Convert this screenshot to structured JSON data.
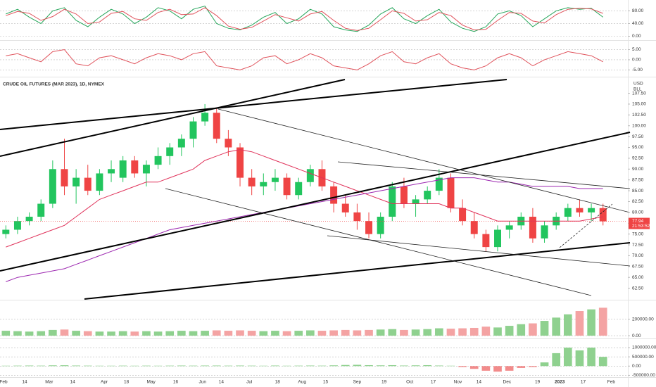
{
  "chart_data": [
    {
      "type": "line",
      "ylim": [
        -10,
        112
      ],
      "grid": true,
      "yticks": [
        {
          "value": 80,
          "label": "80.00"
        },
        {
          "value": 40,
          "label": "40.00"
        },
        {
          "value": 0,
          "label": "0.00"
        }
      ],
      "series": [
        {
          "color": "#26a65b",
          "values": [
            70,
            85,
            60,
            40,
            80,
            90,
            50,
            30,
            60,
            85,
            70,
            40,
            60,
            90,
            80,
            55,
            85,
            95,
            40,
            25,
            20,
            35,
            60,
            75,
            40,
            55,
            85,
            70,
            30,
            20,
            15,
            35,
            70,
            90,
            55,
            40,
            65,
            85,
            45,
            25,
            15,
            30,
            70,
            80,
            65,
            30,
            55,
            80,
            90,
            85,
            88,
            60
          ]
        },
        {
          "color": "#e0525b",
          "values": [
            65,
            78,
            72,
            50,
            62,
            85,
            70,
            40,
            45,
            72,
            78,
            55,
            50,
            75,
            85,
            68,
            70,
            90,
            65,
            32,
            22,
            28,
            48,
            68,
            58,
            48,
            70,
            78,
            50,
            25,
            18,
            25,
            52,
            80,
            72,
            48,
            52,
            75,
            65,
            35,
            20,
            22,
            50,
            75,
            72,
            48,
            42,
            68,
            85,
            88,
            86,
            72
          ]
        }
      ]
    },
    {
      "type": "line",
      "ylim": [
        -8,
        9
      ],
      "grid": true,
      "yticks": [
        {
          "value": 5,
          "label": "5.00"
        },
        {
          "value": 0,
          "label": "0.00"
        },
        {
          "value": -5,
          "label": "-5.00"
        }
      ],
      "series": [
        {
          "color": "#e0525b",
          "values": [
            2,
            3,
            1,
            -1,
            4,
            5,
            -2,
            -3,
            1,
            2,
            0,
            -2,
            1,
            3,
            2,
            0,
            3,
            4,
            -3,
            -4,
            -5,
            -3,
            1,
            2,
            -2,
            0,
            3,
            1,
            -3,
            -4,
            -5,
            -2,
            2,
            4,
            -1,
            -2,
            1,
            3,
            -2,
            -4,
            -5,
            -3,
            1,
            3,
            1,
            -3,
            0,
            2,
            4,
            3,
            2,
            -1
          ]
        }
      ]
    },
    {
      "type": "candlestick",
      "title": "CRUDE OIL FUTURES (MAR 2023), 1D, NYMEX",
      "currency": "USD",
      "unit": "BLL",
      "up_color": "#22c55e",
      "down_color": "#ef4444",
      "grid": false,
      "xlim": [
        -0.5,
        53
      ],
      "xticks": [
        {
          "value": -0.2,
          "label": "Feb"
        },
        {
          "value": 1.6,
          "label": "14"
        },
        {
          "value": 3.7,
          "label": "Mar"
        },
        {
          "value": 5.7,
          "label": "14"
        },
        {
          "value": 8.4,
          "label": "Apr"
        },
        {
          "value": 10.3,
          "label": "18"
        },
        {
          "value": 12.4,
          "label": "May"
        },
        {
          "value": 14.5,
          "label": "16"
        },
        {
          "value": 16.8,
          "label": "Jun"
        },
        {
          "value": 18.4,
          "label": "14"
        },
        {
          "value": 20.8,
          "label": "Jul"
        },
        {
          "value": 23.2,
          "label": "18"
        },
        {
          "value": 25.3,
          "label": "Aug"
        },
        {
          "value": 27.3,
          "label": "15"
        },
        {
          "value": 30.0,
          "label": "Sep"
        },
        {
          "value": 32.3,
          "label": "19"
        },
        {
          "value": 34.5,
          "label": "Oct"
        },
        {
          "value": 36.5,
          "label": "17"
        },
        {
          "value": 38.6,
          "label": "Nov"
        },
        {
          "value": 40.4,
          "label": "14"
        },
        {
          "value": 42.8,
          "label": "Dec"
        },
        {
          "value": 45.4,
          "label": "19"
        },
        {
          "value": 47.3,
          "label": "2023"
        },
        {
          "value": 49.3,
          "label": "17"
        },
        {
          "value": 51.7,
          "label": "Feb"
        }
      ],
      "ylim": [
        60,
        111
      ],
      "yticks": [
        {
          "value": 62.5,
          "label": "62.50"
        },
        {
          "value": 65,
          "label": "65.00"
        },
        {
          "value": 67.5,
          "label": "67.50"
        },
        {
          "value": 70,
          "label": "70.00"
        },
        {
          "value": 72.5,
          "label": "72.50"
        },
        {
          "value": 75,
          "label": "75.00"
        },
        {
          "value": 77.5,
          "label": "77.50"
        },
        {
          "value": 80,
          "label": "80.00"
        },
        {
          "value": 82.5,
          "label": "82.50"
        },
        {
          "value": 85,
          "label": "85.00"
        },
        {
          "value": 87.5,
          "label": "87.50"
        },
        {
          "value": 90,
          "label": "90.00"
        },
        {
          "value": 92.5,
          "label": "92.50"
        },
        {
          "value": 95,
          "label": "95.00"
        },
        {
          "value": 97.5,
          "label": "97.50"
        },
        {
          "value": 100,
          "label": "100.00"
        },
        {
          "value": 102.5,
          "label": "102.50"
        },
        {
          "value": 105,
          "label": "105.00"
        },
        {
          "value": 107.5,
          "label": "107.50"
        }
      ],
      "open": [
        75,
        76,
        78,
        79,
        82,
        90,
        86,
        88,
        85,
        89,
        88,
        92,
        89,
        91,
        93,
        95,
        97,
        101,
        103,
        97,
        95,
        88,
        86,
        87,
        88,
        84,
        87,
        90,
        86,
        82,
        80,
        78,
        75,
        79,
        86,
        82,
        83,
        85,
        88,
        81,
        78,
        75,
        72,
        76,
        77,
        79,
        74,
        77,
        79,
        81,
        80,
        81
      ],
      "high": [
        77,
        79,
        80,
        83,
        92,
        97,
        90,
        91,
        90,
        92,
        93,
        93,
        92,
        95,
        96,
        98,
        102,
        105,
        104,
        99,
        96,
        90,
        89,
        90,
        89,
        88,
        91,
        92,
        87,
        84,
        82,
        80,
        80,
        87,
        88,
        84,
        86,
        90,
        89,
        83,
        80,
        76,
        77,
        78,
        80,
        81,
        78,
        80,
        82,
        83,
        82,
        82
      ],
      "low": [
        74,
        75,
        77,
        78,
        81,
        84,
        82,
        84,
        84,
        87,
        87,
        88,
        86,
        90,
        91,
        93,
        95,
        100,
        96,
        93,
        86,
        84,
        84,
        85,
        83,
        83,
        86,
        85,
        80,
        79,
        76,
        74,
        74,
        78,
        81,
        79,
        82,
        84,
        80,
        77,
        74,
        71,
        71,
        74,
        76,
        73,
        73,
        76,
        78,
        79,
        78,
        77
      ],
      "close": [
        76,
        78,
        79,
        82,
        90,
        86,
        88,
        85,
        89,
        90,
        92,
        89,
        91,
        93,
        95,
        97,
        101,
        103,
        97,
        95,
        88,
        86,
        87,
        88,
        84,
        87,
        90,
        86,
        82,
        80,
        78,
        75,
        79,
        86,
        82,
        83,
        85,
        88,
        81,
        78,
        75,
        72,
        76,
        77,
        79,
        74,
        77,
        79,
        81,
        80,
        81,
        77.94
      ],
      "series": [
        {
          "color": "#e0335b",
          "values": [
            72,
            73,
            74,
            75,
            76,
            77,
            79,
            81,
            83,
            84,
            85,
            86,
            87,
            87,
            88,
            89,
            90,
            92,
            93,
            94,
            94.5,
            94,
            93,
            92,
            91,
            90,
            89,
            88,
            87,
            86,
            85,
            84,
            83,
            82,
            82,
            82,
            82,
            82,
            81,
            81,
            80,
            79,
            78,
            78,
            78,
            78,
            78,
            78,
            78,
            78,
            78.5,
            79
          ]
        },
        {
          "color": "#9c27b0",
          "values": [
            64,
            65,
            65.5,
            66,
            66.5,
            67,
            68,
            69,
            70,
            71,
            72,
            73,
            74,
            75,
            76,
            76.5,
            77,
            77.5,
            78,
            78.5,
            79,
            79.5,
            80,
            80.5,
            81,
            81.5,
            82,
            82.5,
            83,
            83.5,
            84,
            84.5,
            85,
            85.5,
            86,
            86.5,
            87,
            87.5,
            88,
            88,
            88,
            87.5,
            87,
            87,
            86.5,
            86,
            86,
            86,
            86,
            85.5,
            85.5,
            85.5
          ]
        }
      ],
      "last_price": {
        "value": 77.94,
        "label": "77.94"
      },
      "countdown": "21:53:52"
    },
    {
      "type": "bar",
      "ylim": [
        -25000,
        420000
      ],
      "grid": true,
      "yticks": [
        {
          "value": 200000,
          "label": "200000.00"
        },
        {
          "value": 0,
          "label": "0.00"
        }
      ],
      "pos_color": "#f4a3a3",
      "neg_color": "#f4a3a3",
      "values": [
        60000,
        55000,
        50000,
        55000,
        70000,
        75000,
        60000,
        55000,
        50000,
        50000,
        55000,
        50000,
        55000,
        50000,
        55000,
        60000,
        55000,
        60000,
        65000,
        60000,
        65000,
        60000,
        55000,
        60000,
        55000,
        60000,
        65000,
        60000,
        65000,
        70000,
        65000,
        70000,
        75000,
        80000,
        70000,
        75000,
        80000,
        90000,
        85000,
        90000,
        95000,
        110000,
        100000,
        120000,
        140000,
        150000,
        180000,
        220000,
        260000,
        300000,
        320000,
        340000
      ]
    },
    {
      "type": "bar",
      "ylim": [
        -560000,
        1420000
      ],
      "grid": true,
      "yticks": [
        {
          "value": 1000000,
          "label": "1000000.00"
        },
        {
          "value": 500000,
          "label": "500000.00"
        },
        {
          "value": 0,
          "label": "0.00"
        },
        {
          "value": -500000,
          "label": "-500000.00"
        }
      ],
      "pos_color": "#8fd18f",
      "neg_color": "#f28b8b",
      "values": [
        20000,
        25000,
        30000,
        25000,
        40000,
        45000,
        30000,
        25000,
        20000,
        20000,
        25000,
        20000,
        25000,
        20000,
        25000,
        30000,
        25000,
        30000,
        30000,
        25000,
        30000,
        25000,
        20000,
        30000,
        20000,
        25000,
        30000,
        25000,
        40000,
        60000,
        70000,
        50000,
        40000,
        50000,
        30000,
        40000,
        50000,
        30000,
        20000,
        -50000,
        -150000,
        -250000,
        -300000,
        -250000,
        -100000,
        -50000,
        200000,
        700000,
        1000000,
        850000,
        1000000,
        500000
      ]
    }
  ]
}
